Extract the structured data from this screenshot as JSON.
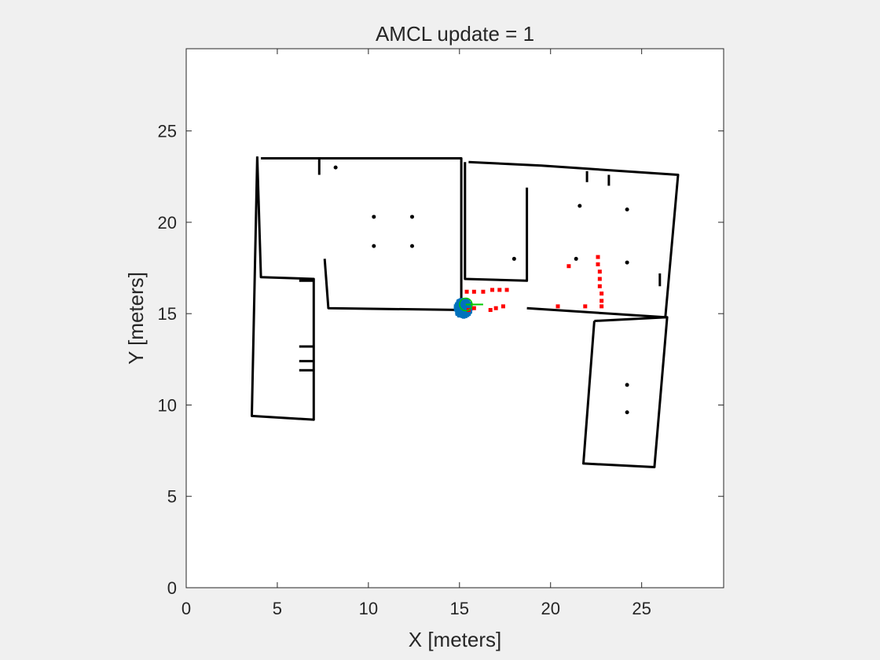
{
  "chart_data": {
    "type": "scatter",
    "title": "AMCL update = 1",
    "xlabel": "X [meters]",
    "ylabel": "Y [meters]",
    "xlim": [
      0,
      29.5
    ],
    "ylim": [
      0,
      29.5
    ],
    "xticks": [
      0,
      5,
      10,
      15,
      20,
      25
    ],
    "yticks": [
      0,
      5,
      10,
      15,
      20,
      25
    ],
    "grid": false,
    "colors": {
      "walls": "#000000",
      "laser_scan": "#ff0000",
      "particles": "#0072bd",
      "pose_estimate": "#00c800",
      "axes_background": "#ffffff",
      "figure_background": "#f0f0f0"
    },
    "map_walls": [
      [
        [
          3.9,
          23.6
        ],
        [
          3.6,
          9.4
        ],
        [
          7.0,
          9.2
        ],
        [
          7.0,
          16.9
        ],
        [
          4.1,
          17.0
        ],
        [
          3.9,
          23.6
        ]
      ],
      [
        [
          4.1,
          23.5
        ],
        [
          15.1,
          23.5
        ],
        [
          15.1,
          15.2
        ],
        [
          7.8,
          15.3
        ],
        [
          7.6,
          18.0
        ]
      ],
      [
        [
          15.5,
          23.3
        ],
        [
          19.5,
          23.1
        ],
        [
          27.0,
          22.6
        ],
        [
          26.3,
          14.8
        ],
        [
          18.7,
          15.3
        ]
      ],
      [
        [
          15.3,
          23.3
        ],
        [
          15.3,
          16.9
        ],
        [
          18.7,
          16.8
        ],
        [
          18.7,
          21.9
        ]
      ],
      [
        [
          22.4,
          14.6
        ],
        [
          26.4,
          14.8
        ],
        [
          25.7,
          6.6
        ],
        [
          21.8,
          6.8
        ],
        [
          22.4,
          14.6
        ]
      ],
      [
        [
          6.2,
          13.2
        ],
        [
          7.0,
          13.2
        ]
      ],
      [
        [
          6.2,
          12.4
        ],
        [
          7.0,
          12.4
        ]
      ],
      [
        [
          6.2,
          11.9
        ],
        [
          7.0,
          11.9
        ]
      ],
      [
        [
          6.2,
          16.8
        ],
        [
          7.0,
          16.8
        ]
      ],
      [
        [
          7.3,
          23.5
        ],
        [
          7.3,
          22.6
        ]
      ],
      [
        [
          22.0,
          22.8
        ],
        [
          22.0,
          22.2
        ]
      ],
      [
        [
          23.2,
          22.6
        ],
        [
          23.2,
          22.0
        ]
      ],
      [
        [
          26.0,
          17.2
        ],
        [
          26.0,
          16.5
        ]
      ]
    ],
    "map_obstacles": [
      [
        8.2,
        23.0
      ],
      [
        18.0,
        18.0
      ],
      [
        21.6,
        20.9
      ],
      [
        24.2,
        20.7
      ],
      [
        10.3,
        20.3
      ],
      [
        12.4,
        20.3
      ],
      [
        10.3,
        18.7
      ],
      [
        12.4,
        18.7
      ],
      [
        21.4,
        18.0
      ],
      [
        24.2,
        17.8
      ],
      [
        24.2,
        11.1
      ],
      [
        24.2,
        9.6
      ]
    ],
    "laser_scan": [
      [
        15.4,
        16.2
      ],
      [
        15.8,
        16.2
      ],
      [
        16.3,
        16.2
      ],
      [
        16.8,
        16.3
      ],
      [
        17.2,
        16.3
      ],
      [
        17.6,
        16.3
      ],
      [
        15.5,
        15.2
      ],
      [
        15.8,
        15.3
      ],
      [
        16.7,
        15.2
      ],
      [
        17.0,
        15.3
      ],
      [
        17.4,
        15.4
      ],
      [
        20.4,
        15.4
      ],
      [
        21.9,
        15.4
      ],
      [
        21.0,
        17.6
      ],
      [
        22.6,
        18.1
      ],
      [
        22.6,
        17.7
      ],
      [
        22.7,
        17.3
      ],
      [
        22.7,
        16.9
      ],
      [
        22.7,
        16.5
      ],
      [
        22.8,
        16.1
      ],
      [
        22.8,
        15.7
      ],
      [
        22.8,
        15.4
      ]
    ],
    "particles": {
      "center": [
        15.2,
        15.3
      ],
      "spread": 0.45,
      "count": 500
    },
    "pose_estimate": {
      "x": 15.35,
      "y": 15.5,
      "theta": 0.0
    }
  }
}
